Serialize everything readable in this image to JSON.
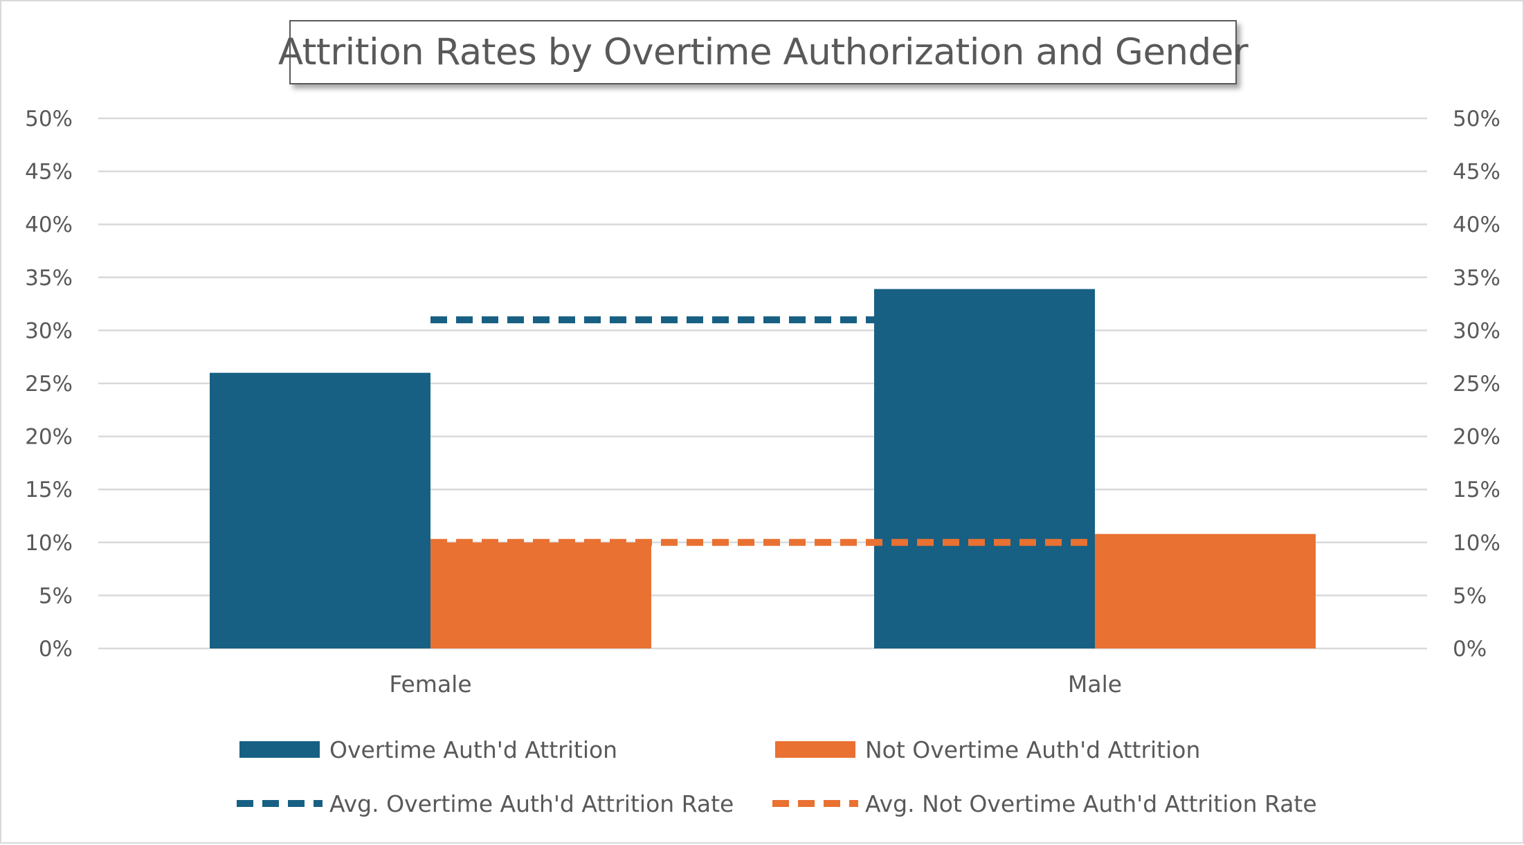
{
  "chart_data": {
    "type": "bar",
    "title": "Attrition Rates by Overtime Authorization and Gender",
    "categories": [
      "Female",
      "Male"
    ],
    "series": [
      {
        "name": "Overtime Auth'd Attrition",
        "kind": "bar",
        "color": "#176083",
        "values": [
          0.26,
          0.339
        ]
      },
      {
        "name": "Not Overtime Auth'd Attrition",
        "kind": "bar",
        "color": "#E97132",
        "values": [
          0.1,
          0.108
        ]
      },
      {
        "name": "Avg. Overtime Auth'd Attrition Rate",
        "kind": "line",
        "style": "dashed",
        "color": "#176083",
        "values": [
          0.31,
          0.31
        ]
      },
      {
        "name": "Avg. Not Overtime Auth'd Attrition Rate",
        "kind": "line",
        "style": "dashed",
        "color": "#E97132",
        "values": [
          0.1,
          0.1
        ]
      }
    ],
    "ylim": [
      0,
      0.5
    ],
    "yticks": [
      "0%",
      "5%",
      "10%",
      "15%",
      "20%",
      "25%",
      "30%",
      "35%",
      "40%",
      "45%",
      "50%"
    ],
    "secondary_yticks": [
      "0%",
      "5%",
      "10%",
      "15%",
      "20%",
      "25%",
      "30%",
      "35%",
      "40%",
      "45%",
      "50%"
    ],
    "grid": true,
    "legend_position": "bottom",
    "xlabel": "",
    "ylabel": ""
  }
}
